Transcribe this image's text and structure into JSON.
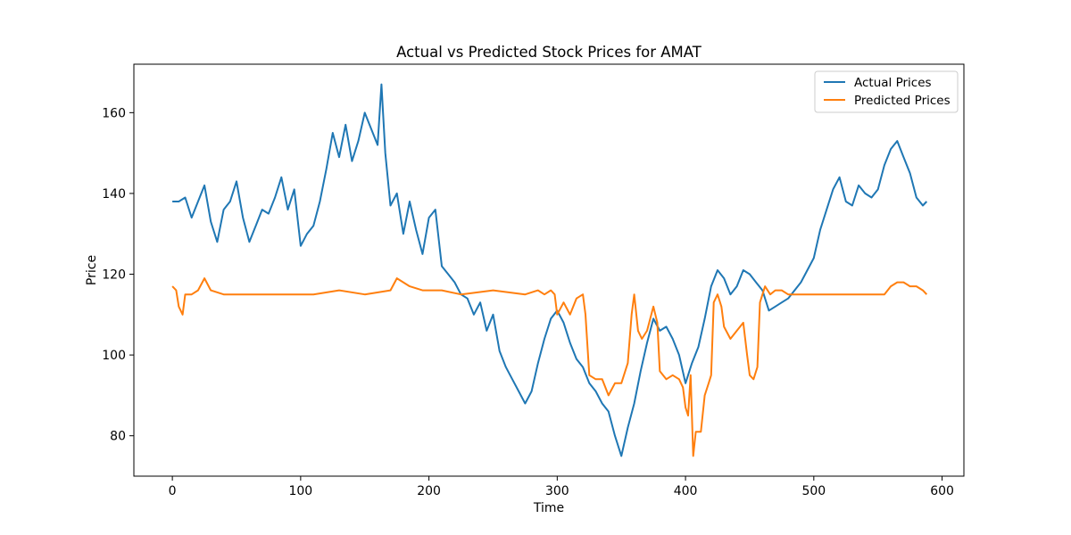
{
  "chart_data": {
    "type": "line",
    "title": "Actual vs Predicted Stock Prices for AMAT",
    "xlabel": "Time",
    "ylabel": "Price",
    "xlim": [
      -30,
      617
    ],
    "ylim": [
      70,
      172
    ],
    "xticks": [
      0,
      100,
      200,
      300,
      400,
      500,
      600
    ],
    "yticks": [
      80,
      100,
      120,
      140,
      160
    ],
    "grid": false,
    "legend_position": "top-right",
    "series": [
      {
        "name": "Actual Prices",
        "color": "#1f77b4",
        "points": [
          [
            0,
            138
          ],
          [
            5,
            138
          ],
          [
            10,
            139
          ],
          [
            15,
            134
          ],
          [
            20,
            138
          ],
          [
            25,
            142
          ],
          [
            30,
            133
          ],
          [
            35,
            128
          ],
          [
            40,
            136
          ],
          [
            45,
            138
          ],
          [
            50,
            143
          ],
          [
            55,
            134
          ],
          [
            60,
            128
          ],
          [
            65,
            132
          ],
          [
            70,
            136
          ],
          [
            75,
            135
          ],
          [
            80,
            139
          ],
          [
            85,
            144
          ],
          [
            90,
            136
          ],
          [
            95,
            141
          ],
          [
            100,
            127
          ],
          [
            105,
            130
          ],
          [
            110,
            132
          ],
          [
            115,
            138
          ],
          [
            120,
            146
          ],
          [
            125,
            155
          ],
          [
            130,
            149
          ],
          [
            135,
            157
          ],
          [
            140,
            148
          ],
          [
            145,
            153
          ],
          [
            150,
            160
          ],
          [
            155,
            156
          ],
          [
            160,
            152
          ],
          [
            163,
            167
          ],
          [
            166,
            150
          ],
          [
            170,
            137
          ],
          [
            175,
            140
          ],
          [
            180,
            130
          ],
          [
            185,
            138
          ],
          [
            190,
            131
          ],
          [
            195,
            125
          ],
          [
            200,
            134
          ],
          [
            205,
            136
          ],
          [
            210,
            122
          ],
          [
            215,
            120
          ],
          [
            220,
            118
          ],
          [
            225,
            115
          ],
          [
            230,
            114
          ],
          [
            235,
            110
          ],
          [
            240,
            113
          ],
          [
            245,
            106
          ],
          [
            250,
            110
          ],
          [
            255,
            101
          ],
          [
            260,
            97
          ],
          [
            265,
            94
          ],
          [
            270,
            91
          ],
          [
            275,
            88
          ],
          [
            280,
            91
          ],
          [
            285,
            98
          ],
          [
            290,
            104
          ],
          [
            295,
            109
          ],
          [
            300,
            111
          ],
          [
            305,
            108
          ],
          [
            310,
            103
          ],
          [
            315,
            99
          ],
          [
            320,
            97
          ],
          [
            325,
            93
          ],
          [
            330,
            91
          ],
          [
            335,
            88
          ],
          [
            340,
            86
          ],
          [
            345,
            80
          ],
          [
            350,
            75
          ],
          [
            355,
            82
          ],
          [
            360,
            88
          ],
          [
            365,
            96
          ],
          [
            370,
            103
          ],
          [
            375,
            109
          ],
          [
            380,
            106
          ],
          [
            385,
            107
          ],
          [
            390,
            104
          ],
          [
            395,
            100
          ],
          [
            400,
            93
          ],
          [
            405,
            98
          ],
          [
            410,
            102
          ],
          [
            415,
            109
          ],
          [
            420,
            117
          ],
          [
            425,
            121
          ],
          [
            430,
            119
          ],
          [
            435,
            115
          ],
          [
            440,
            117
          ],
          [
            445,
            121
          ],
          [
            450,
            120
          ],
          [
            455,
            118
          ],
          [
            460,
            116
          ],
          [
            465,
            111
          ],
          [
            470,
            112
          ],
          [
            475,
            113
          ],
          [
            480,
            114
          ],
          [
            485,
            116
          ],
          [
            490,
            118
          ],
          [
            495,
            121
          ],
          [
            500,
            124
          ],
          [
            505,
            131
          ],
          [
            510,
            136
          ],
          [
            515,
            141
          ],
          [
            520,
            144
          ],
          [
            525,
            138
          ],
          [
            530,
            137
          ],
          [
            535,
            142
          ],
          [
            540,
            140
          ],
          [
            545,
            139
          ],
          [
            550,
            141
          ],
          [
            555,
            147
          ],
          [
            560,
            151
          ],
          [
            565,
            153
          ],
          [
            570,
            149
          ],
          [
            575,
            145
          ],
          [
            580,
            139
          ],
          [
            585,
            137
          ],
          [
            588,
            138
          ]
        ]
      },
      {
        "name": "Predicted Prices",
        "color": "#ff7f0e",
        "points": [
          [
            0,
            117
          ],
          [
            3,
            116
          ],
          [
            5,
            112
          ],
          [
            8,
            110
          ],
          [
            10,
            115
          ],
          [
            15,
            115
          ],
          [
            20,
            116
          ],
          [
            25,
            119
          ],
          [
            30,
            116
          ],
          [
            40,
            115
          ],
          [
            60,
            115
          ],
          [
            80,
            115
          ],
          [
            100,
            115
          ],
          [
            110,
            115
          ],
          [
            130,
            116
          ],
          [
            150,
            115
          ],
          [
            170,
            116
          ],
          [
            175,
            119
          ],
          [
            185,
            117
          ],
          [
            195,
            116
          ],
          [
            210,
            116
          ],
          [
            225,
            115
          ],
          [
            250,
            116
          ],
          [
            275,
            115
          ],
          [
            285,
            116
          ],
          [
            290,
            115
          ],
          [
            295,
            116
          ],
          [
            298,
            115
          ],
          [
            300,
            110
          ],
          [
            305,
            113
          ],
          [
            310,
            110
          ],
          [
            315,
            114
          ],
          [
            320,
            115
          ],
          [
            322,
            110
          ],
          [
            325,
            95
          ],
          [
            330,
            94
          ],
          [
            335,
            94
          ],
          [
            340,
            90
          ],
          [
            345,
            93
          ],
          [
            350,
            93
          ],
          [
            355,
            98
          ],
          [
            358,
            110
          ],
          [
            360,
            115
          ],
          [
            363,
            106
          ],
          [
            366,
            104
          ],
          [
            370,
            106
          ],
          [
            375,
            112
          ],
          [
            378,
            108
          ],
          [
            380,
            96
          ],
          [
            385,
            94
          ],
          [
            390,
            95
          ],
          [
            395,
            94
          ],
          [
            398,
            92
          ],
          [
            400,
            87
          ],
          [
            402,
            85
          ],
          [
            404,
            95
          ],
          [
            406,
            75
          ],
          [
            408,
            81
          ],
          [
            410,
            81
          ],
          [
            412,
            81
          ],
          [
            415,
            90
          ],
          [
            418,
            93
          ],
          [
            420,
            95
          ],
          [
            422,
            113
          ],
          [
            425,
            115
          ],
          [
            428,
            112
          ],
          [
            430,
            107
          ],
          [
            435,
            104
          ],
          [
            440,
            106
          ],
          [
            445,
            108
          ],
          [
            448,
            100
          ],
          [
            450,
            95
          ],
          [
            453,
            94
          ],
          [
            456,
            97
          ],
          [
            458,
            113
          ],
          [
            462,
            117
          ],
          [
            466,
            115
          ],
          [
            470,
            116
          ],
          [
            475,
            116
          ],
          [
            480,
            115
          ],
          [
            490,
            115
          ],
          [
            500,
            115
          ],
          [
            520,
            115
          ],
          [
            540,
            115
          ],
          [
            555,
            115
          ],
          [
            560,
            117
          ],
          [
            565,
            118
          ],
          [
            570,
            118
          ],
          [
            575,
            117
          ],
          [
            580,
            117
          ],
          [
            585,
            116
          ],
          [
            588,
            115
          ]
        ]
      }
    ]
  }
}
